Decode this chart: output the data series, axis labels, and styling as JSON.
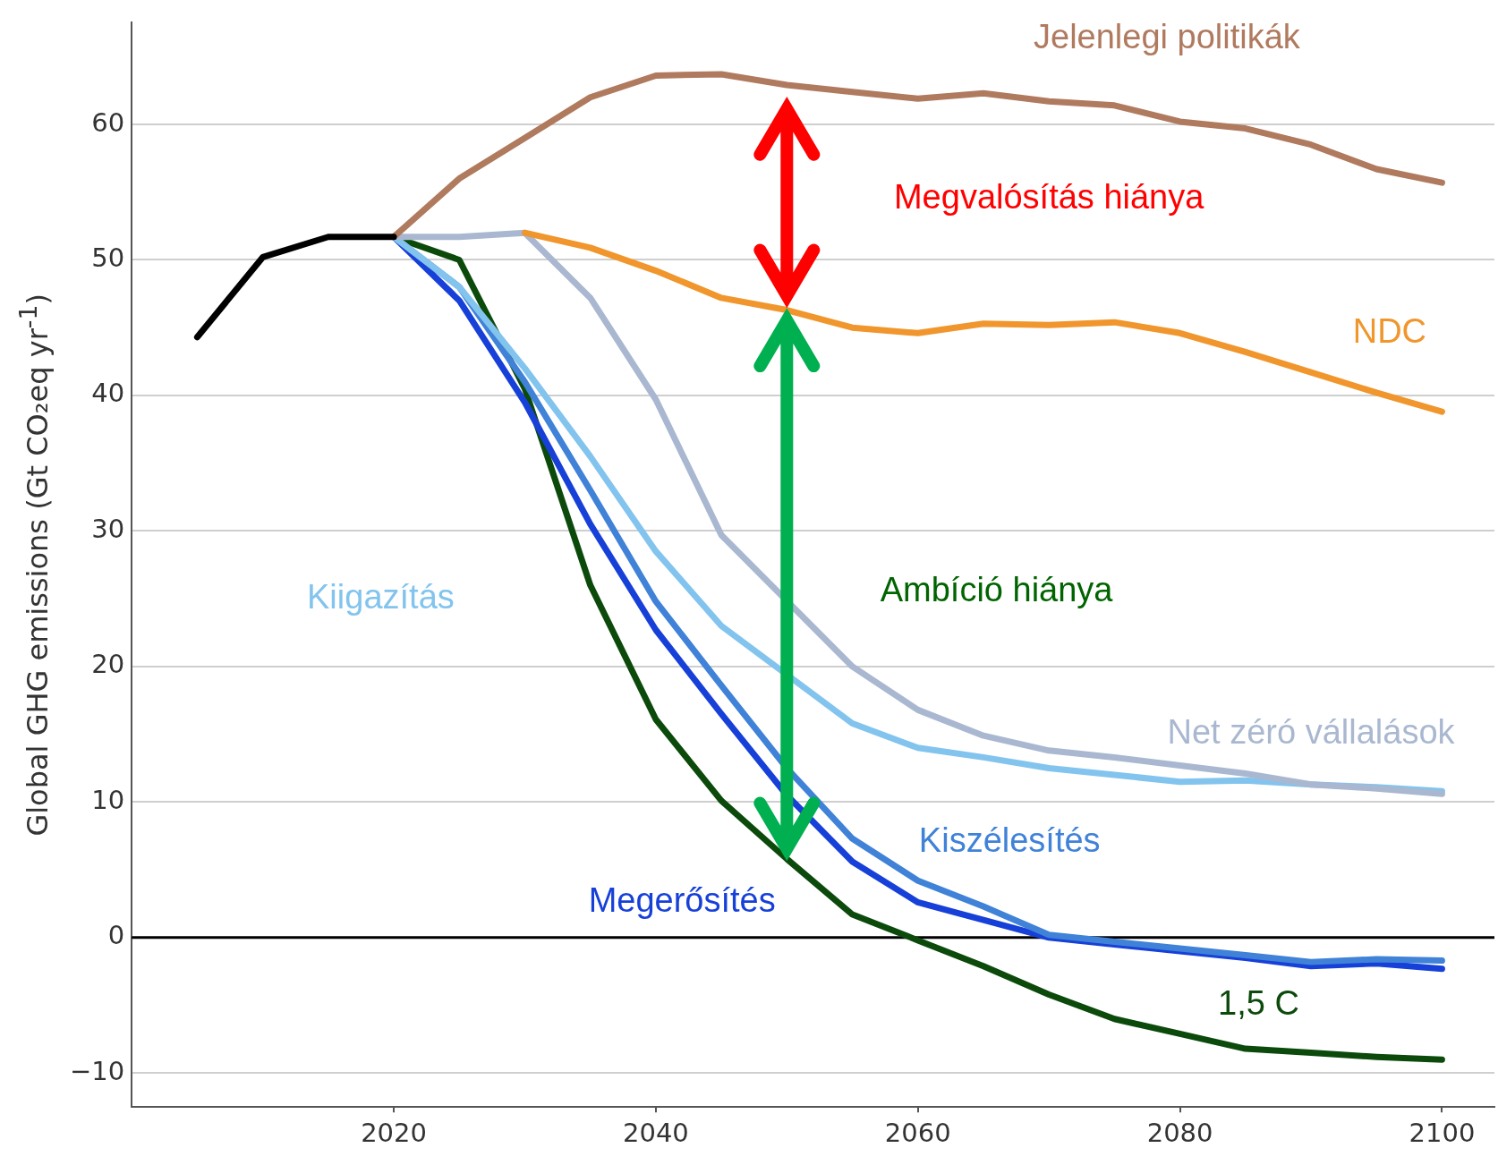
{
  "chart_data": {
    "type": "line",
    "ylabel": "Global GHG emissions (Gt CO₂eq yr$^{-1}$)",
    "xlim": [
      2000,
      2104
    ],
    "xticks": [
      2020,
      2040,
      2060,
      2080,
      2100
    ],
    "ylim": [
      -12.5,
      67.5
    ],
    "yticks": [
      {
        "value": -10,
        "label": "−10"
      },
      0,
      10,
      20,
      30,
      40,
      50,
      60
    ],
    "grid": "y",
    "legend": false,
    "marker": "none",
    "line_style": "solid",
    "ref_lines": [
      {
        "axis": "y",
        "value": 0,
        "color": "#000000"
      }
    ],
    "annotations": [
      "Megvalósítás hiánya",
      "Ambíció hiánya"
    ],
    "series": [
      {
        "color": "#000000",
        "x": [
          2005,
          2010,
          2015,
          2020
        ],
        "values": [
          44.3,
          50.2,
          51.7,
          51.7
        ]
      },
      {
        "name": "Jelenlegi politikák",
        "color": "#b07a5f",
        "x": [
          2020,
          2025,
          2030,
          2035,
          2040,
          2045,
          2050,
          2055,
          2060,
          2065,
          2070,
          2075,
          2080,
          2085,
          2090,
          2095,
          2100
        ],
        "values": [
          51.7,
          56,
          59,
          62,
          63.6,
          63.7,
          62.9,
          62.4,
          61.9,
          62.3,
          61.7,
          61.4,
          60.2,
          59.7,
          58.5,
          56.7,
          55.7
        ]
      },
      {
        "name": "NDC",
        "color": "#f0962d",
        "x": [
          2030,
          2035,
          2040,
          2045,
          2050,
          2055,
          2060,
          2065,
          2070,
          2075,
          2080,
          2085,
          2090,
          2095,
          2100
        ],
        "values": [
          52,
          50.9,
          49.2,
          47.2,
          46.3,
          45,
          44.6,
          45.3,
          45.2,
          45.4,
          44.6,
          43.2,
          41.7,
          40.2,
          38.8
        ]
      },
      {
        "name": "Net zéró vállalások",
        "color": "#a9b8d0",
        "x": [
          2020,
          2025,
          2030,
          2035,
          2040,
          2045,
          2050,
          2055,
          2060,
          2065,
          2070,
          2075,
          2080,
          2085,
          2090,
          2095,
          2100
        ],
        "values": [
          51.7,
          51.7,
          52,
          47.2,
          39.7,
          29.7,
          null,
          20,
          16.8,
          14.9,
          13.8,
          13.3,
          12.7,
          12.1,
          11.3,
          11,
          10.6
        ]
      },
      {
        "name": "Kiigazítás",
        "color": "#82c4ee",
        "x": [
          2020,
          2025,
          2030,
          2035,
          2040,
          2045,
          2050,
          2055,
          2060,
          2065,
          2070,
          2075,
          2080,
          2085,
          2090,
          2095,
          2100
        ],
        "values": [
          51.7,
          48,
          42,
          35.5,
          28.5,
          23,
          null,
          15.8,
          14,
          13.3,
          12.5,
          12,
          11.5,
          11.6,
          11.3,
          11.1,
          10.8
        ]
      },
      {
        "name": "Kiszélesítés",
        "color": "#3f82d8",
        "x": [
          2020,
          2025,
          2030,
          2035,
          2040,
          2045,
          2050,
          2055,
          2060,
          2065,
          2070,
          2075,
          2080,
          2085,
          2090,
          2095,
          2100
        ],
        "values": [
          51.7,
          48,
          41,
          33,
          24.8,
          18.6,
          12.5,
          7.3,
          4.2,
          2.3,
          0.2,
          -0.3,
          -0.8,
          -1.3,
          -1.8,
          -1.6,
          -1.7
        ]
      },
      {
        "name": "Megerősítés",
        "color": "#1740d8",
        "x": [
          2020,
          2025,
          2030,
          2035,
          2040,
          2045,
          2050,
          2055,
          2060,
          2065,
          2070,
          2075,
          2080,
          2085,
          2090,
          2095,
          2100
        ],
        "values": [
          51.7,
          47,
          39.5,
          30.5,
          22.7,
          16.5,
          10.5,
          5.6,
          2.6,
          1.3,
          0,
          -0.5,
          -1,
          -1.5,
          -2.1,
          -1.9,
          -2.3
        ]
      },
      {
        "name": "1,5 C",
        "color": "#0c4a0c",
        "x": [
          2020,
          2025,
          2030,
          2035,
          2040,
          2045,
          2050,
          2055,
          2060,
          2065,
          2070,
          2075,
          2080,
          2085,
          2090,
          2095,
          2100
        ],
        "values": [
          51.7,
          50,
          40.5,
          26,
          16.1,
          10.1,
          5.8,
          1.7,
          -0.2,
          -2.1,
          -4.2,
          -6,
          -7.1,
          -8.2,
          -8.5,
          -8.8,
          -9
        ]
      }
    ]
  }
}
